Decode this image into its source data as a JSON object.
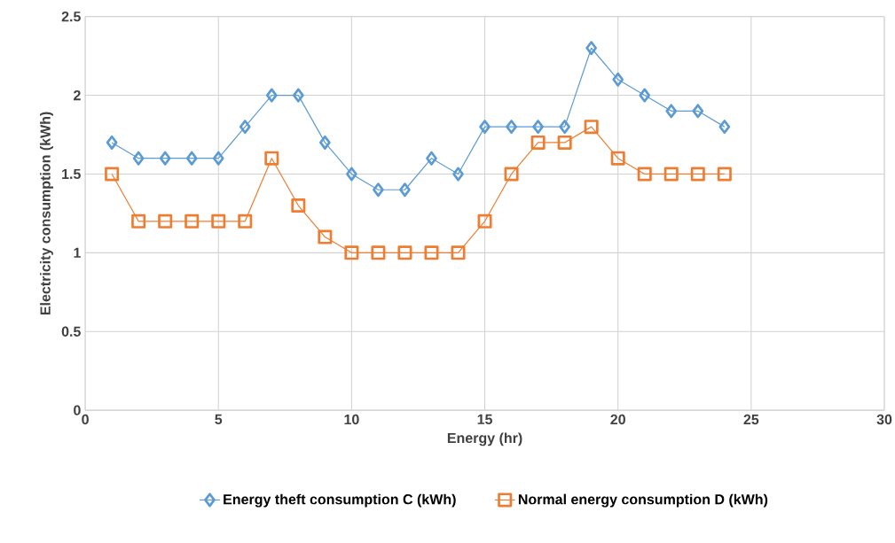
{
  "chart_data": {
    "type": "line",
    "xlabel": "Energy (hr)",
    "ylabel": "Electricity consumption (kWh)",
    "x": [
      1,
      2,
      3,
      4,
      5,
      6,
      7,
      8,
      9,
      10,
      11,
      12,
      13,
      14,
      15,
      16,
      17,
      18,
      19,
      20,
      21,
      22,
      23,
      24
    ],
    "series": [
      {
        "name": "Energy theft consumption C (kWh)",
        "color": "#5b9bd5",
        "marker": "diamond",
        "values": [
          1.7,
          1.6,
          1.6,
          1.6,
          1.6,
          1.8,
          2.0,
          2.0,
          1.7,
          1.5,
          1.4,
          1.4,
          1.6,
          1.5,
          1.8,
          1.8,
          1.8,
          1.8,
          2.3,
          2.1,
          2.0,
          1.9,
          1.9,
          1.8
        ]
      },
      {
        "name": "Normal energy consumption D (kWh)",
        "color": "#ed7d31",
        "marker": "square",
        "values": [
          1.5,
          1.2,
          1.2,
          1.2,
          1.2,
          1.2,
          1.6,
          1.3,
          1.1,
          1.0,
          1.0,
          1.0,
          1.0,
          1.0,
          1.2,
          1.5,
          1.7,
          1.7,
          1.8,
          1.6,
          1.5,
          1.5,
          1.5,
          1.5
        ]
      }
    ],
    "xlim": [
      0,
      30
    ],
    "xticks": [
      0,
      5,
      10,
      15,
      20,
      25,
      30
    ],
    "ylim": [
      0,
      2.5
    ],
    "yticks": [
      0,
      0.5,
      1,
      1.5,
      2,
      2.5
    ],
    "grid": true,
    "legend": "bottom",
    "line_style": "solid"
  }
}
